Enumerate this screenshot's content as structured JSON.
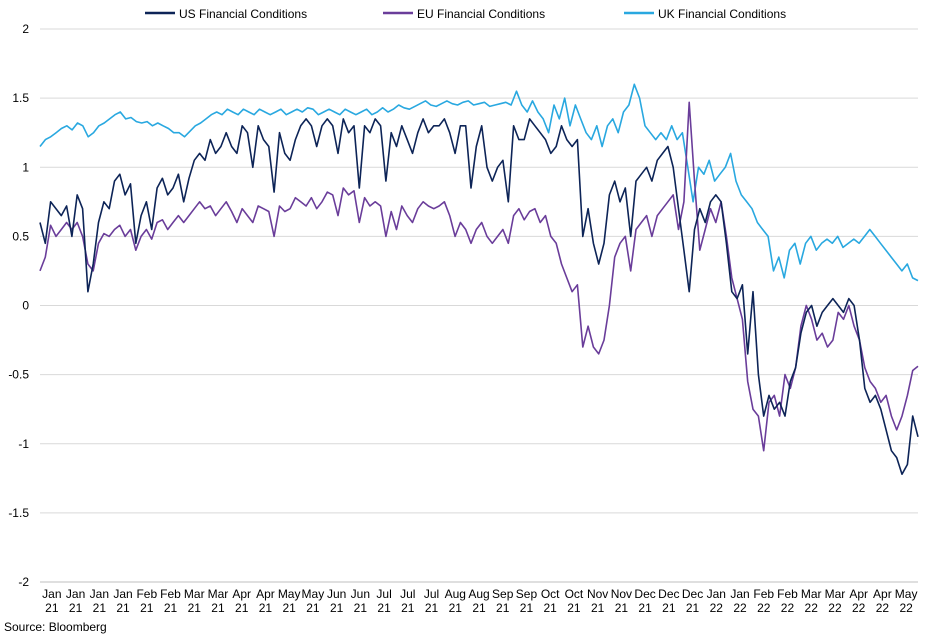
{
  "chart_data": {
    "type": "line",
    "ylim": [
      -2,
      2
    ],
    "yticks": [
      2,
      1.5,
      1,
      0.5,
      0,
      -0.5,
      -1,
      -1.5,
      -2
    ],
    "ytick_labels": [
      "2",
      "1.5",
      "1",
      "0.5",
      "0",
      "-0.5",
      "-1",
      "-1.5",
      "-2"
    ],
    "xticks": [
      {
        "month": "Jan",
        "year": "21"
      },
      {
        "month": "Jan",
        "year": "21"
      },
      {
        "month": "Jan",
        "year": "21"
      },
      {
        "month": "Jan",
        "year": "21"
      },
      {
        "month": "Feb",
        "year": "21"
      },
      {
        "month": "Feb",
        "year": "21"
      },
      {
        "month": "Mar",
        "year": "21"
      },
      {
        "month": "Mar",
        "year": "21"
      },
      {
        "month": "Apr",
        "year": "21"
      },
      {
        "month": "Apr",
        "year": "21"
      },
      {
        "month": "May",
        "year": "21"
      },
      {
        "month": "May",
        "year": "21"
      },
      {
        "month": "Jun",
        "year": "21"
      },
      {
        "month": "Jun",
        "year": "21"
      },
      {
        "month": "Jul",
        "year": "21"
      },
      {
        "month": "Jul",
        "year": "21"
      },
      {
        "month": "Jul",
        "year": "21"
      },
      {
        "month": "Aug",
        "year": "21"
      },
      {
        "month": "Aug",
        "year": "21"
      },
      {
        "month": "Sep",
        "year": "21"
      },
      {
        "month": "Sep",
        "year": "21"
      },
      {
        "month": "Oct",
        "year": "21"
      },
      {
        "month": "Oct",
        "year": "21"
      },
      {
        "month": "Nov",
        "year": "21"
      },
      {
        "month": "Nov",
        "year": "21"
      },
      {
        "month": "Dec",
        "year": "21"
      },
      {
        "month": "Dec",
        "year": "21"
      },
      {
        "month": "Dec",
        "year": "21"
      },
      {
        "month": "Jan",
        "year": "22"
      },
      {
        "month": "Jan",
        "year": "22"
      },
      {
        "month": "Feb",
        "year": "22"
      },
      {
        "month": "Feb",
        "year": "22"
      },
      {
        "month": "Mar",
        "year": "22"
      },
      {
        "month": "Mar",
        "year": "22"
      },
      {
        "month": "Apr",
        "year": "22"
      },
      {
        "month": "Apr",
        "year": "22"
      },
      {
        "month": "May",
        "year": "22"
      }
    ],
    "legend_position": "top",
    "grid": "horizontal",
    "series": [
      {
        "name": "US Financial Conditions",
        "color": "#0d2457",
        "values": [
          0.6,
          0.45,
          0.75,
          0.7,
          0.65,
          0.72,
          0.5,
          0.8,
          0.7,
          0.1,
          0.3,
          0.6,
          0.75,
          0.7,
          0.9,
          0.95,
          0.8,
          0.88,
          0.45,
          0.65,
          0.75,
          0.55,
          0.85,
          0.92,
          0.8,
          0.85,
          0.95,
          0.75,
          0.92,
          1.05,
          1.1,
          1.05,
          1.2,
          1.1,
          1.15,
          1.25,
          1.15,
          1.1,
          1.3,
          1.25,
          1.0,
          1.3,
          1.2,
          1.15,
          0.82,
          1.25,
          1.1,
          1.05,
          1.2,
          1.3,
          1.35,
          1.3,
          1.15,
          1.3,
          1.35,
          1.3,
          1.1,
          1.35,
          1.25,
          1.3,
          0.85,
          1.3,
          1.25,
          1.35,
          1.3,
          0.9,
          1.25,
          1.15,
          1.3,
          1.2,
          1.1,
          1.25,
          1.35,
          1.25,
          1.3,
          1.3,
          1.35,
          1.25,
          1.1,
          1.3,
          1.3,
          0.85,
          1.15,
          1.3,
          1.0,
          0.9,
          1.0,
          1.05,
          0.75,
          1.3,
          1.2,
          1.2,
          1.35,
          1.3,
          1.25,
          1.2,
          1.1,
          1.15,
          1.3,
          1.2,
          1.15,
          1.2,
          0.5,
          0.7,
          0.45,
          0.3,
          0.45,
          0.8,
          0.9,
          0.75,
          0.85,
          0.5,
          0.9,
          0.95,
          1.0,
          0.9,
          1.05,
          1.1,
          1.15,
          1.0,
          0.7,
          0.4,
          0.1,
          0.55,
          0.7,
          0.6,
          0.75,
          0.8,
          0.75,
          0.45,
          0.1,
          0.05,
          0.15,
          -0.35,
          0.1,
          -0.5,
          -0.8,
          -0.65,
          -0.75,
          -0.7,
          -0.8,
          -0.55,
          -0.45,
          -0.2,
          -0.05,
          0.0,
          -0.15,
          -0.05,
          0.0,
          0.05,
          0.0,
          -0.05,
          0.05,
          0.0,
          -0.25,
          -0.6,
          -0.7,
          -0.65,
          -0.75,
          -0.9,
          -1.05,
          -1.1,
          -1.22,
          -1.15,
          -0.8,
          -0.95
        ]
      },
      {
        "name": "EU Financial Conditions",
        "color": "#6a3d9a",
        "values": [
          0.25,
          0.35,
          0.58,
          0.5,
          0.55,
          0.6,
          0.55,
          0.6,
          0.5,
          0.3,
          0.25,
          0.45,
          0.52,
          0.5,
          0.55,
          0.58,
          0.5,
          0.55,
          0.4,
          0.5,
          0.55,
          0.48,
          0.6,
          0.62,
          0.55,
          0.6,
          0.65,
          0.6,
          0.65,
          0.7,
          0.75,
          0.7,
          0.72,
          0.65,
          0.7,
          0.75,
          0.68,
          0.6,
          0.7,
          0.65,
          0.6,
          0.72,
          0.7,
          0.68,
          0.5,
          0.72,
          0.68,
          0.7,
          0.78,
          0.75,
          0.72,
          0.78,
          0.7,
          0.75,
          0.82,
          0.8,
          0.65,
          0.85,
          0.8,
          0.83,
          0.6,
          0.78,
          0.72,
          0.75,
          0.72,
          0.5,
          0.68,
          0.55,
          0.72,
          0.65,
          0.6,
          0.7,
          0.75,
          0.72,
          0.7,
          0.72,
          0.75,
          0.65,
          0.5,
          0.6,
          0.55,
          0.45,
          0.55,
          0.6,
          0.5,
          0.45,
          0.5,
          0.55,
          0.45,
          0.65,
          0.7,
          0.62,
          0.68,
          0.7,
          0.6,
          0.65,
          0.5,
          0.45,
          0.3,
          0.2,
          0.1,
          0.15,
          -0.3,
          -0.15,
          -0.3,
          -0.35,
          -0.25,
          0.0,
          0.35,
          0.45,
          0.5,
          0.25,
          0.55,
          0.6,
          0.65,
          0.5,
          0.65,
          0.7,
          0.75,
          0.8,
          0.55,
          0.75,
          1.47,
          0.9,
          0.4,
          0.55,
          0.7,
          0.6,
          0.75,
          0.5,
          0.2,
          0.05,
          -0.1,
          -0.55,
          -0.75,
          -0.8,
          -1.05,
          -0.7,
          -0.65,
          -0.8,
          -0.5,
          -0.6,
          -0.45,
          -0.15,
          0.0,
          -0.1,
          -0.25,
          -0.2,
          -0.3,
          -0.25,
          -0.05,
          -0.1,
          0.0,
          -0.15,
          -0.25,
          -0.45,
          -0.55,
          -0.6,
          -0.7,
          -0.65,
          -0.8,
          -0.9,
          -0.8,
          -0.65,
          -0.47,
          -0.44
        ]
      },
      {
        "name": "UK Financial Conditions",
        "color": "#29a8e0",
        "values": [
          1.15,
          1.2,
          1.22,
          1.25,
          1.28,
          1.3,
          1.27,
          1.32,
          1.3,
          1.22,
          1.25,
          1.3,
          1.32,
          1.35,
          1.38,
          1.4,
          1.35,
          1.36,
          1.33,
          1.32,
          1.33,
          1.3,
          1.32,
          1.3,
          1.28,
          1.25,
          1.25,
          1.22,
          1.26,
          1.3,
          1.32,
          1.35,
          1.38,
          1.4,
          1.38,
          1.42,
          1.4,
          1.38,
          1.42,
          1.4,
          1.38,
          1.42,
          1.4,
          1.38,
          1.4,
          1.42,
          1.38,
          1.4,
          1.42,
          1.4,
          1.43,
          1.42,
          1.38,
          1.4,
          1.42,
          1.4,
          1.38,
          1.42,
          1.4,
          1.38,
          1.4,
          1.42,
          1.38,
          1.4,
          1.43,
          1.4,
          1.42,
          1.45,
          1.43,
          1.42,
          1.44,
          1.46,
          1.48,
          1.45,
          1.44,
          1.46,
          1.48,
          1.46,
          1.45,
          1.47,
          1.48,
          1.45,
          1.46,
          1.47,
          1.44,
          1.45,
          1.46,
          1.47,
          1.45,
          1.55,
          1.45,
          1.4,
          1.48,
          1.4,
          1.35,
          1.25,
          1.45,
          1.35,
          1.5,
          1.3,
          1.45,
          1.35,
          1.25,
          1.2,
          1.3,
          1.15,
          1.3,
          1.35,
          1.25,
          1.4,
          1.45,
          1.6,
          1.5,
          1.3,
          1.25,
          1.2,
          1.25,
          1.2,
          1.3,
          1.2,
          1.25,
          1.0,
          0.75,
          1.0,
          0.95,
          1.05,
          0.9,
          0.95,
          1.0,
          1.1,
          0.9,
          0.8,
          0.75,
          0.7,
          0.6,
          0.55,
          0.5,
          0.25,
          0.35,
          0.2,
          0.4,
          0.45,
          0.3,
          0.45,
          0.5,
          0.4,
          0.45,
          0.48,
          0.45,
          0.5,
          0.42,
          0.45,
          0.48,
          0.45,
          0.5,
          0.55,
          0.5,
          0.45,
          0.4,
          0.35,
          0.3,
          0.25,
          0.3,
          0.2,
          0.18
        ]
      }
    ]
  },
  "source": "Source: Bloomberg"
}
